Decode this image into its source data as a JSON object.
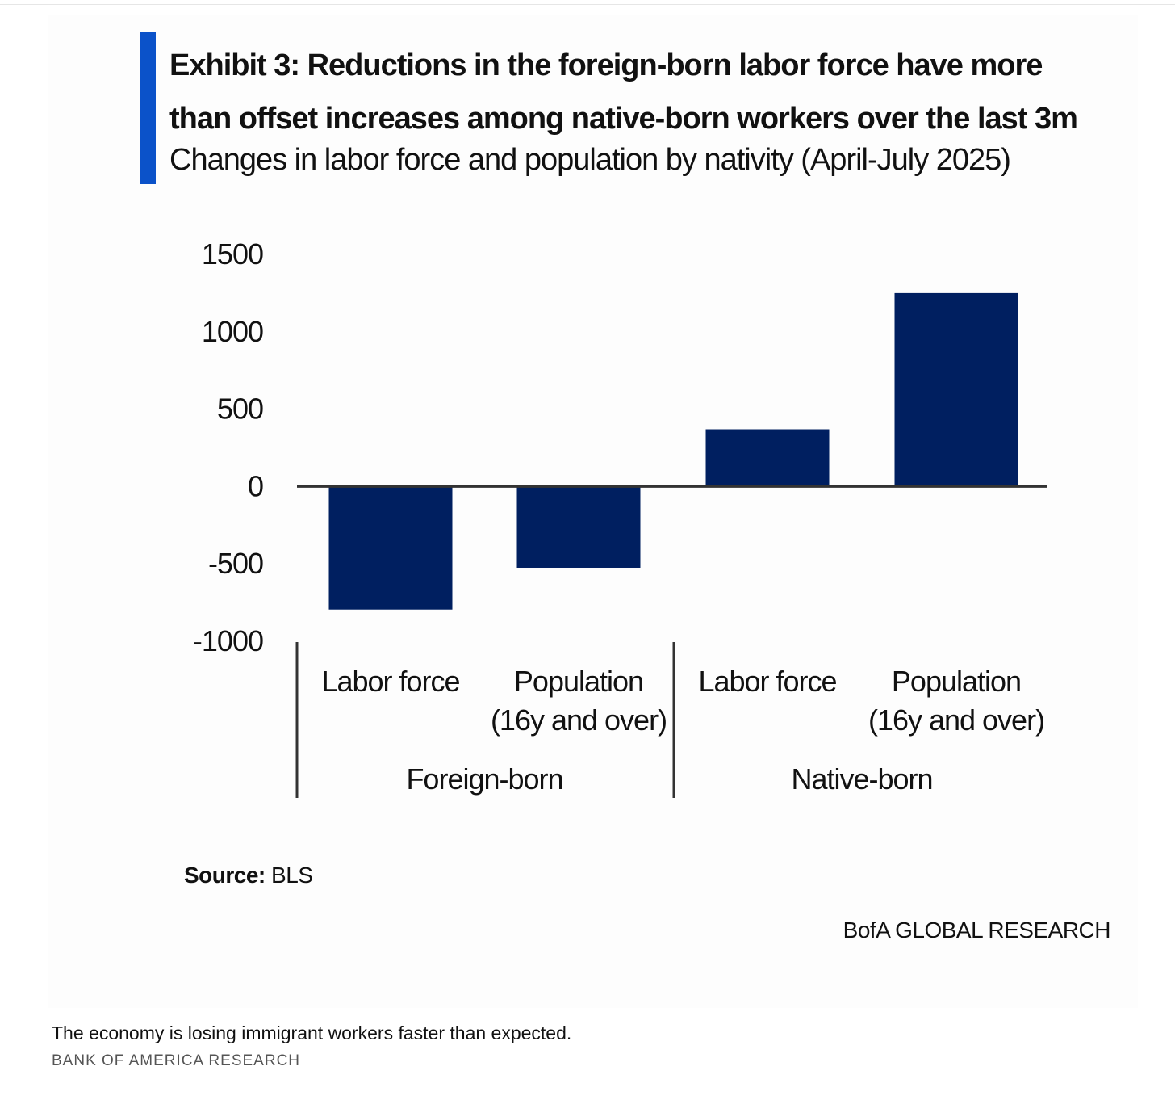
{
  "exhibit": {
    "title": "Exhibit 3: Reductions in the foreign-born labor force have more than offset increases among native-born workers over the last 3m",
    "title_line1": "Exhibit 3: Reductions in the foreign-born labor force have more",
    "title_line2": "than offset increases among native-born workers over the last 3m",
    "subtitle": "Changes in labor force and population by nativity (April-July 2025)",
    "source_label": "Source:",
    "source_value": "BLS",
    "brand": "BofA GLOBAL RESEARCH",
    "accent_color": "#0b52c9"
  },
  "caption": {
    "text": "The economy is losing immigrant workers faster than expected.",
    "credit": "BANK OF AMERICA RESEARCH"
  },
  "chart_data": {
    "type": "bar",
    "title": "Changes in labor force and population by nativity (April-July 2025)",
    "categories": [
      [
        "Labor force"
      ],
      [
        "Population",
        "(16y and over)"
      ],
      [
        "Labor force"
      ],
      [
        "Population",
        "(16y and over)"
      ]
    ],
    "groups": [
      {
        "label": "Foreign-born",
        "category_indices": [
          0,
          1
        ]
      },
      {
        "label": "Native-born",
        "category_indices": [
          2,
          3
        ]
      }
    ],
    "values": [
      -795,
      -525,
      370,
      1250
    ],
    "ylim": [
      -1000,
      1500
    ],
    "yticks": [
      1500,
      1000,
      500,
      0,
      -500,
      -1000
    ],
    "ytick_labels": [
      "1500",
      "1000",
      "500",
      "0",
      "-500",
      "-1000"
    ],
    "bar_color": "#001f60",
    "axis_color": "#333333",
    "grid": false,
    "legend": "none"
  }
}
